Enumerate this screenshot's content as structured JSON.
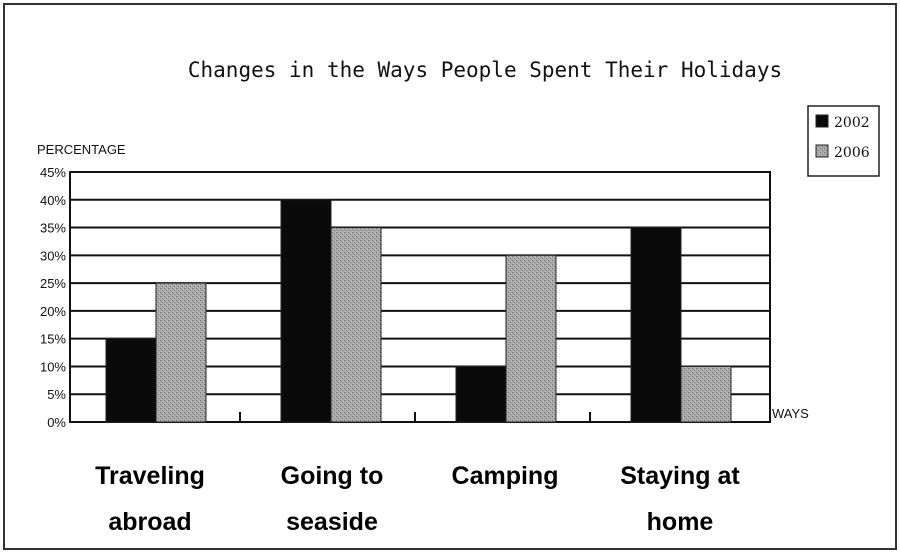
{
  "chart_data": {
    "type": "bar",
    "title": "Changes in the Ways People Spent Their Holidays",
    "ylabel": "PERCENTAGE",
    "xlabel": "WAYS",
    "categories": [
      [
        "Traveling",
        "abroad"
      ],
      [
        "Going to",
        "seaside"
      ],
      [
        "Camping"
      ],
      [
        "Staying at",
        "home"
      ]
    ],
    "series": [
      {
        "name": "2002",
        "values": [
          15,
          40,
          10,
          35
        ],
        "color": "#0a0a0a"
      },
      {
        "name": "2006",
        "values": [
          25,
          35,
          30,
          10
        ],
        "color": "#9a9a9a"
      }
    ],
    "ylim": [
      0,
      45
    ],
    "yticks": [
      "0%",
      "5%",
      "10%",
      "15%",
      "20%",
      "25%",
      "30%",
      "35%",
      "40%",
      "45%"
    ],
    "grid": true,
    "legend_position": "top-right"
  }
}
